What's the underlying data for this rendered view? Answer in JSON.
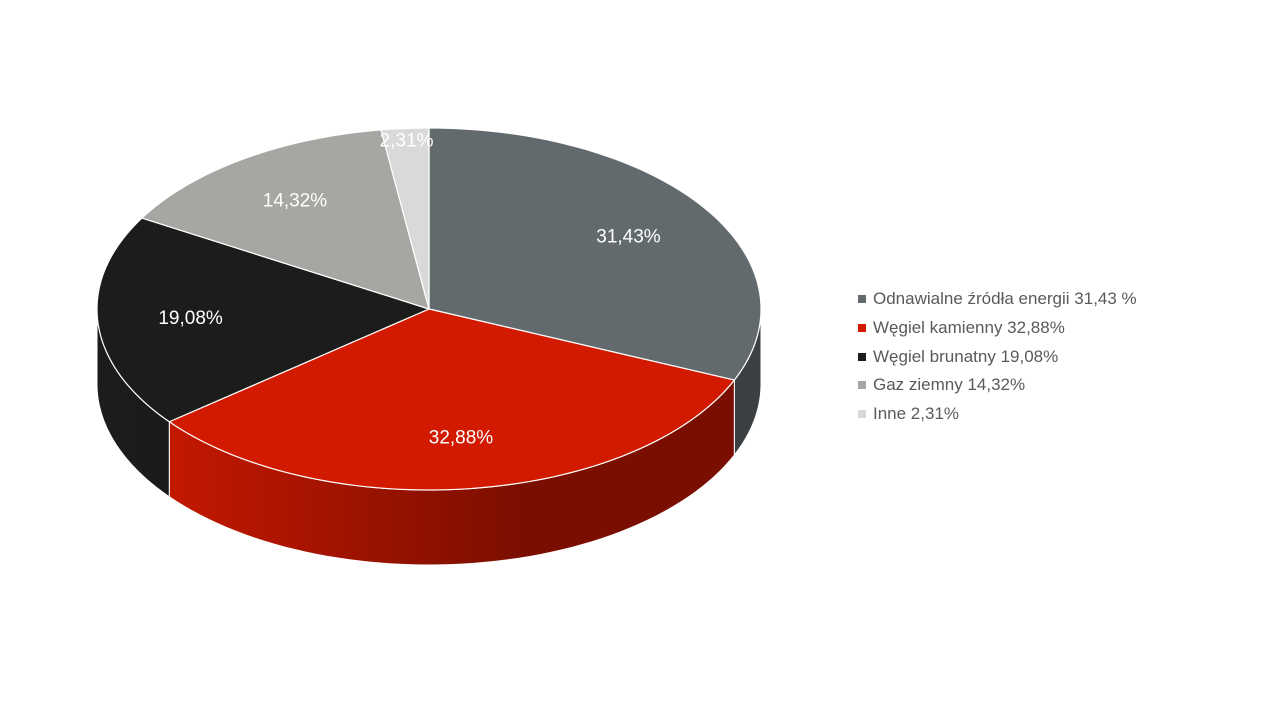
{
  "chart_data": {
    "type": "pie",
    "style": "3d",
    "title": "",
    "categories": [
      "Odnawialne źródła energii",
      "Węgiel kamienny",
      "Węgiel brunatny",
      "Gaz ziemny",
      "Inne"
    ],
    "values": [
      31.43,
      32.88,
      19.08,
      14.32,
      2.31
    ],
    "data_labels": [
      "31,43%",
      "32,88%",
      "19,08%",
      "14,32%",
      "2,31%"
    ],
    "colors": [
      "#636a6d",
      "#d21a00",
      "#1c1c1c",
      "#a5a7a3",
      "#d9d9d9"
    ],
    "side_colors": [
      "#3c4042",
      "#7a0e00",
      "#121212",
      "#6b6c6a",
      "#9a9a9a"
    ],
    "legend": {
      "position": "right",
      "entries": [
        "Odnawialne źródła energii 31,43 %",
        "Węgiel kamienny 32,88%",
        "Węgiel brunatny 19,08%",
        "Gaz ziemny 14,32%",
        "Inne 2,31%"
      ]
    }
  }
}
